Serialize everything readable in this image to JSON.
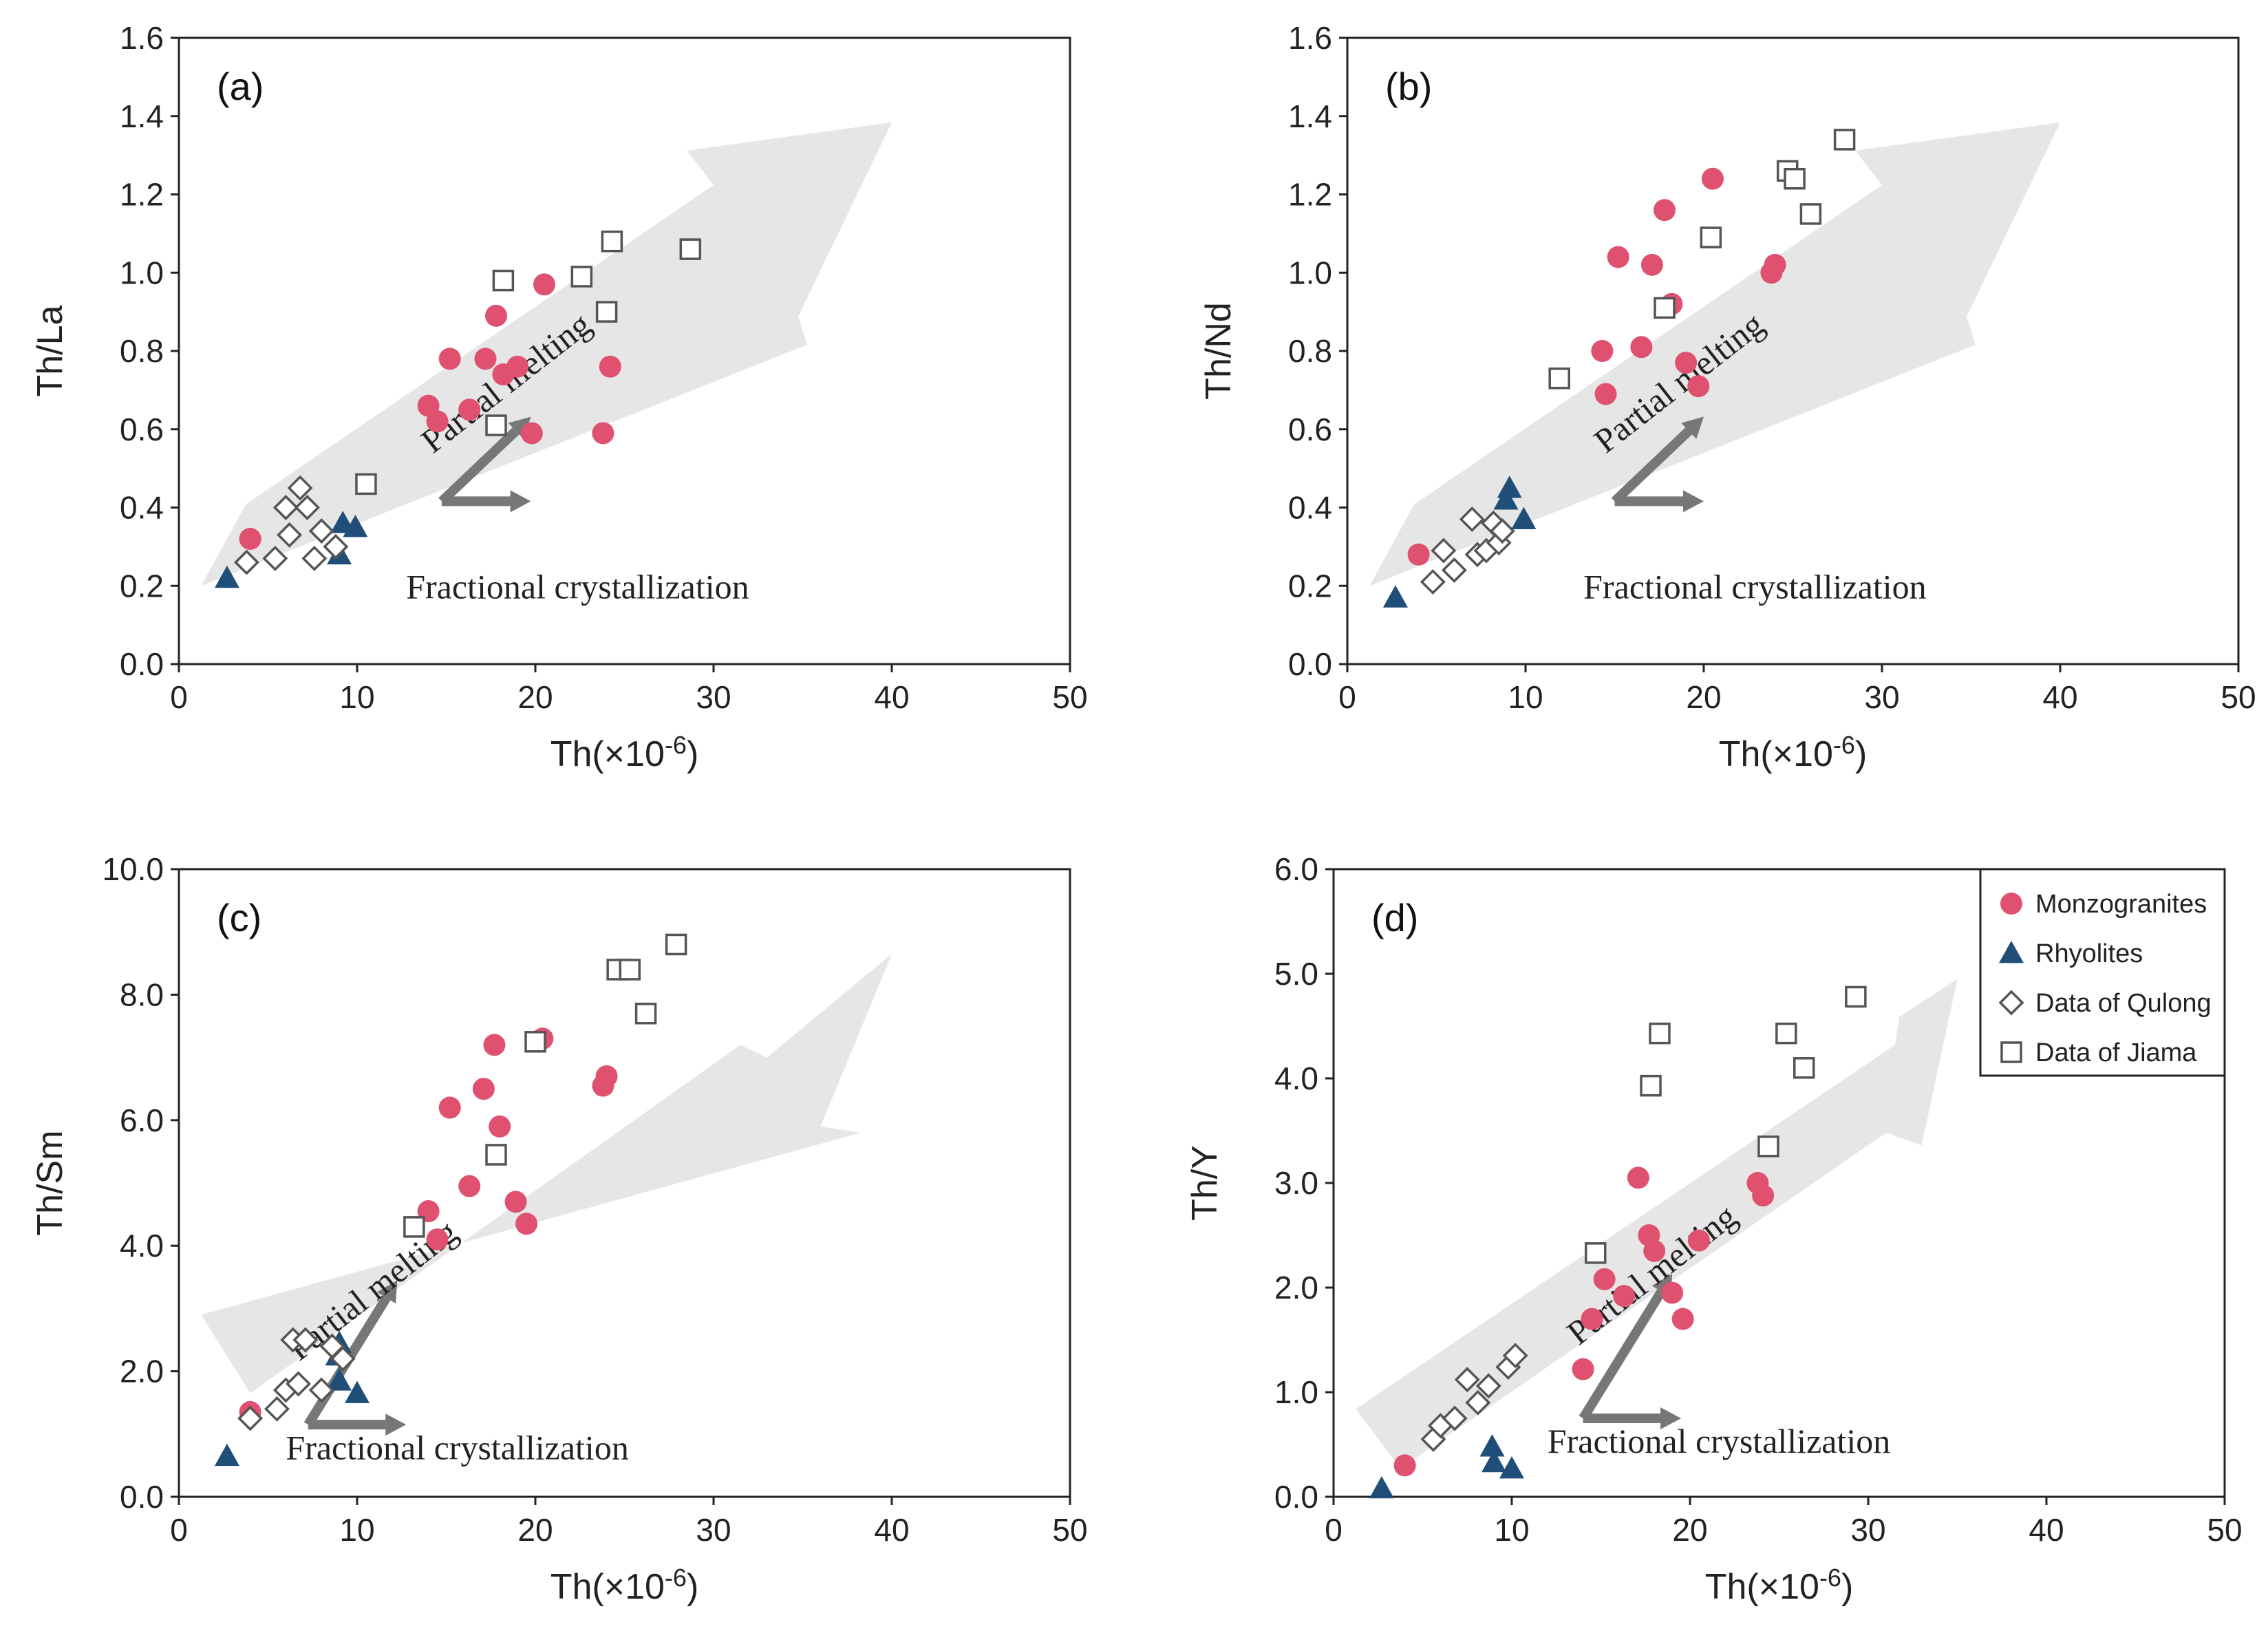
{
  "colors": {
    "monzogranites": "#e0506f",
    "rhyolites": "#1f4e79",
    "open_marker": "#555555",
    "trend_arrow": "#e6e6e6",
    "process_arrow": "#777777"
  },
  "legend": [
    {
      "name": "Monzogranites",
      "marker": "circle"
    },
    {
      "name": "Rhyolites",
      "marker": "triangle"
    },
    {
      "name": "Data of Qulong",
      "marker": "diamond"
    },
    {
      "name": "Data of Jiama",
      "marker": "square"
    }
  ],
  "annotations": {
    "partial_melting": "Partial melting",
    "fractional_crystallization": "Fractional crystallization"
  },
  "chart_data": [
    {
      "type": "scatter",
      "panel": "(a)",
      "xlabel_main": "Th(×10",
      "xlabel_sup": "-6",
      "xlabel_tail": ")",
      "ylabel": "Th/La",
      "xlim": [
        0,
        50
      ],
      "ylim": [
        0,
        1.6
      ],
      "xticks": [
        "0",
        "10",
        "20",
        "30",
        "40",
        "50"
      ],
      "yticks": [
        "0.0",
        "0.2",
        "0.4",
        "0.6",
        "0.8",
        "1.0",
        "1.2",
        "1.4",
        "1.6"
      ],
      "series": [
        {
          "name": "Monzogranites",
          "marker": "circle",
          "points": [
            [
              4.0,
              0.32
            ],
            [
              14.0,
              0.66
            ],
            [
              14.5,
              0.62
            ],
            [
              15.2,
              0.78
            ],
            [
              16.3,
              0.65
            ],
            [
              17.2,
              0.78
            ],
            [
              17.8,
              0.89
            ],
            [
              18.2,
              0.74
            ],
            [
              19.0,
              0.76
            ],
            [
              19.8,
              0.59
            ],
            [
              20.5,
              0.97
            ],
            [
              23.8,
              0.59
            ],
            [
              24.2,
              0.76
            ]
          ]
        },
        {
          "name": "Rhyolites",
          "marker": "triangle",
          "points": [
            [
              2.7,
              0.22
            ],
            [
              9.0,
              0.28
            ],
            [
              9.2,
              0.36
            ],
            [
              9.9,
              0.35
            ]
          ]
        },
        {
          "name": "Data of Qulong",
          "marker": "diamond",
          "points": [
            [
              3.8,
              0.26
            ],
            [
              5.4,
              0.27
            ],
            [
              6.0,
              0.4
            ],
            [
              6.2,
              0.33
            ],
            [
              6.8,
              0.45
            ],
            [
              7.2,
              0.4
            ],
            [
              7.6,
              0.27
            ],
            [
              8.0,
              0.34
            ],
            [
              8.8,
              0.3
            ]
          ]
        },
        {
          "name": "Data of Jiama",
          "marker": "square",
          "points": [
            [
              10.5,
              0.46
            ],
            [
              17.8,
              0.61
            ],
            [
              18.2,
              0.98
            ],
            [
              22.6,
              0.99
            ],
            [
              24.0,
              0.9
            ],
            [
              24.3,
              1.08
            ],
            [
              28.7,
              1.06
            ]
          ]
        }
      ]
    },
    {
      "type": "scatter",
      "panel": "(b)",
      "xlabel_main": "Th(×10",
      "xlabel_sup": "-6",
      "xlabel_tail": ")",
      "ylabel": "Th/Nd",
      "xlim": [
        0,
        50
      ],
      "ylim": [
        0,
        1.6
      ],
      "xticks": [
        "0",
        "10",
        "20",
        "30",
        "40",
        "50"
      ],
      "yticks": [
        "0.0",
        "0.2",
        "0.4",
        "0.6",
        "0.8",
        "1.0",
        "1.2",
        "1.4",
        "1.6"
      ],
      "series": [
        {
          "name": "Monzogranites",
          "marker": "circle",
          "points": [
            [
              4.0,
              0.28
            ],
            [
              14.3,
              0.8
            ],
            [
              14.5,
              0.69
            ],
            [
              15.2,
              1.04
            ],
            [
              16.5,
              0.81
            ],
            [
              17.1,
              1.02
            ],
            [
              17.8,
              1.16
            ],
            [
              18.2,
              0.92
            ],
            [
              19.0,
              0.77
            ],
            [
              19.7,
              0.71
            ],
            [
              20.5,
              1.24
            ],
            [
              23.8,
              1.0
            ],
            [
              24.0,
              1.02
            ]
          ]
        },
        {
          "name": "Rhyolites",
          "marker": "triangle",
          "points": [
            [
              2.7,
              0.17
            ],
            [
              8.9,
              0.42
            ],
            [
              9.1,
              0.45
            ],
            [
              9.9,
              0.37
            ]
          ]
        },
        {
          "name": "Data of Qulong",
          "marker": "diamond",
          "points": [
            [
              4.8,
              0.21
            ],
            [
              5.4,
              0.29
            ],
            [
              6.0,
              0.24
            ],
            [
              7.0,
              0.37
            ],
            [
              7.3,
              0.28
            ],
            [
              7.8,
              0.29
            ],
            [
              8.2,
              0.36
            ],
            [
              8.5,
              0.31
            ],
            [
              8.7,
              0.34
            ]
          ]
        },
        {
          "name": "Data of Jiama",
          "marker": "square",
          "points": [
            [
              11.9,
              0.73
            ],
            [
              17.8,
              0.91
            ],
            [
              20.4,
              1.09
            ],
            [
              24.7,
              1.26
            ],
            [
              25.1,
              1.24
            ],
            [
              26.0,
              1.15
            ],
            [
              27.9,
              1.34
            ]
          ]
        }
      ]
    },
    {
      "type": "scatter",
      "panel": "(c)",
      "xlabel_main": "Th(×10",
      "xlabel_sup": "-6",
      "xlabel_tail": ")",
      "ylabel": "Th/Sm",
      "xlim": [
        0,
        50
      ],
      "ylim": [
        0,
        10
      ],
      "xticks": [
        "0",
        "10",
        "20",
        "30",
        "40",
        "50"
      ],
      "yticks": [
        "0.0",
        "2.0",
        "4.0",
        "6.0",
        "8.0",
        "10.0"
      ],
      "series": [
        {
          "name": "Monzogranites",
          "marker": "circle",
          "points": [
            [
              4.0,
              1.35
            ],
            [
              14.0,
              4.55
            ],
            [
              14.5,
              4.1
            ],
            [
              15.2,
              6.2
            ],
            [
              16.3,
              4.95
            ],
            [
              17.1,
              6.5
            ],
            [
              17.7,
              7.2
            ],
            [
              18.0,
              5.9
            ],
            [
              18.9,
              4.7
            ],
            [
              19.5,
              4.35
            ],
            [
              20.4,
              7.3
            ],
            [
              23.8,
              6.55
            ],
            [
              24.0,
              6.7
            ]
          ]
        },
        {
          "name": "Rhyolites",
          "marker": "triangle",
          "points": [
            [
              2.7,
              0.65
            ],
            [
              8.9,
              2.25
            ],
            [
              9.0,
              2.45
            ],
            [
              9.0,
              1.85
            ],
            [
              10.0,
              1.65
            ]
          ]
        },
        {
          "name": "Data of Qulong",
          "marker": "diamond",
          "points": [
            [
              4.0,
              1.25
            ],
            [
              5.5,
              1.4
            ],
            [
              6.0,
              1.7
            ],
            [
              6.4,
              2.5
            ],
            [
              6.7,
              1.8
            ],
            [
              7.1,
              2.5
            ],
            [
              8.0,
              1.7
            ],
            [
              8.6,
              2.4
            ],
            [
              9.2,
              2.2
            ]
          ]
        },
        {
          "name": "Data of Jiama",
          "marker": "square",
          "points": [
            [
              13.2,
              4.3
            ],
            [
              17.8,
              5.45
            ],
            [
              20.0,
              7.25
            ],
            [
              24.6,
              8.4
            ],
            [
              25.3,
              8.4
            ],
            [
              26.2,
              7.7
            ],
            [
              27.9,
              8.8
            ]
          ]
        }
      ]
    },
    {
      "type": "scatter",
      "panel": "(d)",
      "xlabel_main": "Th(×10",
      "xlabel_sup": "-6",
      "xlabel_tail": ")",
      "ylabel": "Th/Y",
      "xlim": [
        0,
        50
      ],
      "ylim": [
        0,
        6
      ],
      "xticks": [
        "0",
        "10",
        "20",
        "30",
        "40",
        "50"
      ],
      "yticks": [
        "0.0",
        "1.0",
        "2.0",
        "3.0",
        "4.0",
        "5.0",
        "6.0"
      ],
      "legend": "top-right",
      "series": [
        {
          "name": "Monzogranites",
          "marker": "circle",
          "points": [
            [
              4.0,
              0.3
            ],
            [
              14.0,
              1.22
            ],
            [
              14.5,
              1.7
            ],
            [
              15.2,
              2.08
            ],
            [
              16.3,
              1.92
            ],
            [
              17.1,
              3.05
            ],
            [
              17.7,
              2.5
            ],
            [
              18.0,
              2.35
            ],
            [
              19.0,
              1.95
            ],
            [
              19.6,
              1.7
            ],
            [
              20.5,
              2.45
            ],
            [
              23.8,
              3.0
            ],
            [
              24.1,
              2.88
            ]
          ]
        },
        {
          "name": "Rhyolites",
          "marker": "triangle",
          "points": [
            [
              2.7,
              0.08
            ],
            [
              8.9,
              0.48
            ],
            [
              9.0,
              0.33
            ],
            [
              10.0,
              0.27
            ]
          ]
        },
        {
          "name": "Data of Qulong",
          "marker": "diamond",
          "points": [
            [
              5.6,
              0.55
            ],
            [
              6.0,
              0.68
            ],
            [
              6.8,
              0.75
            ],
            [
              7.5,
              1.12
            ],
            [
              8.1,
              0.9
            ],
            [
              8.7,
              1.06
            ],
            [
              9.8,
              1.24
            ],
            [
              10.2,
              1.35
            ]
          ]
        },
        {
          "name": "Data of Jiama",
          "marker": "square",
          "points": [
            [
              14.7,
              2.33
            ],
            [
              17.8,
              3.93
            ],
            [
              18.3,
              4.43
            ],
            [
              24.4,
              3.35
            ],
            [
              25.4,
              4.43
            ],
            [
              26.4,
              4.1
            ],
            [
              29.3,
              4.78
            ]
          ]
        }
      ]
    }
  ]
}
